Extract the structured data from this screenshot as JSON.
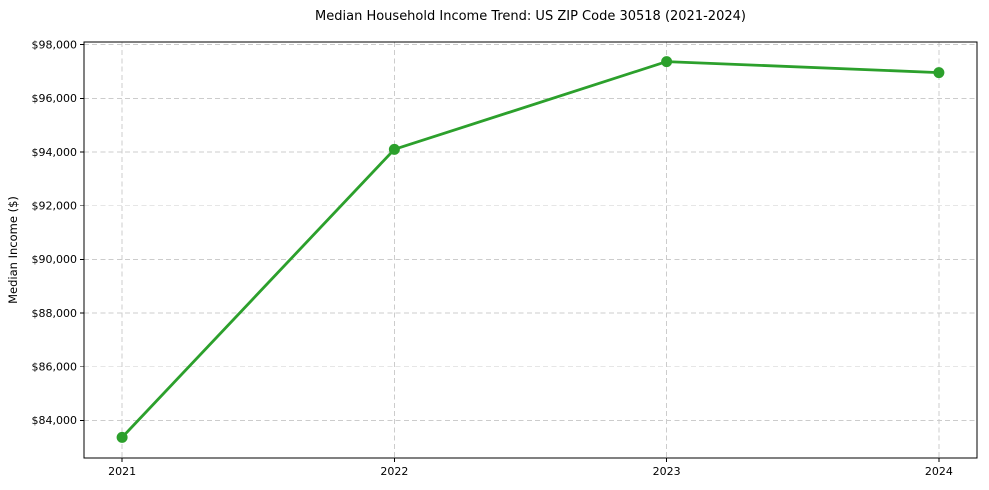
{
  "chart_data": {
    "type": "line",
    "title": "Median Household Income Trend: US ZIP Code 30518 (2021-2024)",
    "xlabel": "",
    "ylabel": "Median Income ($)",
    "x": [
      2021,
      2022,
      2023,
      2024
    ],
    "x_tick_labels": [
      "2021",
      "2022",
      "2023",
      "2024"
    ],
    "series": [
      {
        "name": "Median Household Income",
        "values": [
          83370,
          94100,
          97370,
          96960
        ]
      }
    ],
    "y_ticks": [
      84000,
      86000,
      88000,
      90000,
      92000,
      94000,
      96000,
      98000
    ],
    "y_tick_labels": [
      "$84,000",
      "$86,000",
      "$88,000",
      "$90,000",
      "$92,000",
      "$94,000",
      "$96,000",
      "$98,000"
    ],
    "xlim": [
      2020.86,
      2024.14
    ],
    "ylim": [
      82600,
      98100
    ],
    "grid": true,
    "grid_style": "dashed",
    "legend_position": "none",
    "line_color": "#2ca02c",
    "marker": "circle",
    "background_color": "#ffffff"
  }
}
